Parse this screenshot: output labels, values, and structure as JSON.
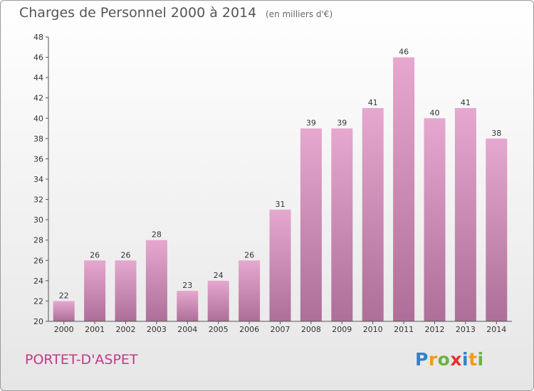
{
  "header": {
    "title": "Charges de Personnel 2000 à 2014",
    "subtitle": "(en milliers d'€)"
  },
  "footer": {
    "commune": "PORTET-D'ASPET",
    "logo_letters": [
      "P",
      "r",
      "o",
      "x",
      "i",
      "t",
      "i"
    ],
    "logo_colors": [
      "#2b86c8",
      "#f29a1c",
      "#6db33f",
      "#e2332d",
      "#2b86c8",
      "#f29a1c",
      "#6db33f"
    ]
  },
  "colors": {
    "bar_light": "#e6a8cf",
    "bar_dark": "#ad6f98",
    "axis": "#555555",
    "grid_tick": "#555555"
  },
  "chart_data": {
    "type": "bar",
    "title": "Charges de Personnel 2000 à 2014",
    "subtitle": "(en milliers d'€)",
    "categories": [
      "2000",
      "2001",
      "2002",
      "2003",
      "2004",
      "2005",
      "2006",
      "2007",
      "2008",
      "2009",
      "2010",
      "2011",
      "2012",
      "2013",
      "2014"
    ],
    "values": [
      22,
      26,
      26,
      28,
      23,
      24,
      26,
      31,
      39,
      39,
      41,
      46,
      40,
      41,
      38
    ],
    "ylim": [
      20,
      48
    ],
    "yticks": [
      20,
      22,
      24,
      26,
      28,
      30,
      32,
      34,
      36,
      38,
      40,
      42,
      44,
      46,
      48
    ],
    "xlabel": "",
    "ylabel": "",
    "grid": false,
    "data_labels": true
  }
}
